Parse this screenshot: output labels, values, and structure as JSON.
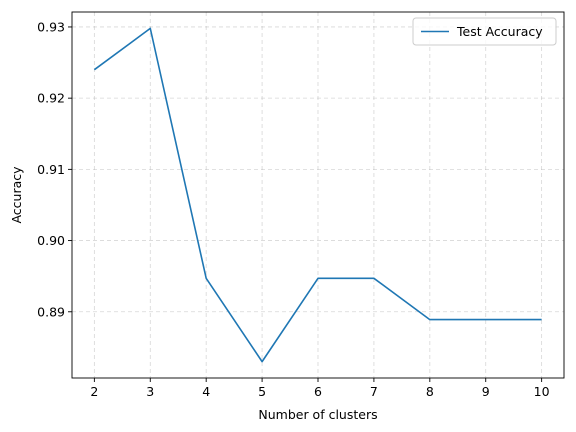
{
  "chart_data": {
    "type": "line",
    "title": "",
    "xlabel": "Number of clusters",
    "ylabel": "Accuracy",
    "x": [
      2,
      3,
      4,
      5,
      6,
      7,
      8,
      9,
      10
    ],
    "series": [
      {
        "name": "Test Accuracy",
        "color": "#1f77b4",
        "values": [
          0.924,
          0.9298,
          0.8947,
          0.883,
          0.8947,
          0.8947,
          0.8889,
          0.8889,
          0.8889
        ]
      }
    ],
    "xlim": [
      1.6,
      10.4
    ],
    "ylim": [
      0.8807,
      0.9321
    ],
    "xticks": [
      2,
      3,
      4,
      5,
      6,
      7,
      8,
      9,
      10
    ],
    "yticks": [
      0.89,
      0.9,
      0.91,
      0.92,
      0.93
    ],
    "ytick_labels": [
      "0.89",
      "0.90",
      "0.91",
      "0.92",
      "0.93"
    ],
    "grid": true,
    "legend_position": "top-right"
  }
}
